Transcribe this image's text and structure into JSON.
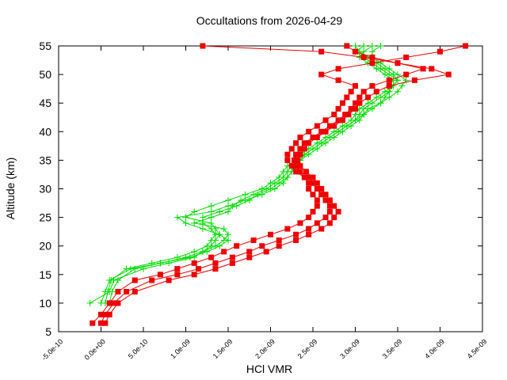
{
  "chart_data": {
    "type": "line",
    "title": "Occultations from 2026-04-29",
    "xlabel": "HCl VMR",
    "ylabel": "Altitude (km)",
    "xlim": [
      -5e-10,
      4.5e-09
    ],
    "ylim": [
      5,
      55
    ],
    "x_ticks": [
      "-5.0e-10",
      "0.0e+00",
      "5.0e-10",
      "1.0e-09",
      "1.5e-09",
      "2.0e-09",
      "2.5e-09",
      "3.0e-09",
      "3.5e-09",
      "4.0e-09",
      "4.5e-09"
    ],
    "x_tick_values": [
      -5e-10,
      0,
      5e-10,
      1e-09,
      1.5e-09,
      2e-09,
      2.5e-09,
      3e-09,
      3.5e-09,
      4e-09,
      4.5e-09
    ],
    "y_ticks": [
      "5",
      "10",
      "15",
      "20",
      "25",
      "30",
      "35",
      "40",
      "45",
      "50",
      "55"
    ],
    "y_tick_values": [
      5,
      10,
      15,
      20,
      25,
      30,
      35,
      40,
      45,
      50,
      55
    ],
    "grid": false,
    "legend": "none",
    "series": [
      {
        "color": "#00dd00",
        "marker": "plus",
        "profiles": [
          {
            "alt": [
              10,
              12,
              14,
              16,
              17,
              18,
              19,
              20,
              21,
              22,
              23,
              24,
              25,
              26,
              27,
              28,
              29,
              30,
              31,
              32,
              33,
              34,
              35,
              36,
              37,
              38,
              39,
              40,
              41,
              42,
              43,
              44,
              45,
              46,
              47,
              48,
              49,
              50,
              51,
              52,
              53,
              54,
              55
            ],
            "vmr": [
              -1.3e-10,
              1e-10,
              1.5e-10,
              5e-10,
              8e-10,
              1.1e-09,
              1.2e-09,
              1.3e-09,
              1.35e-09,
              1.4e-09,
              1.35e-09,
              1.3e-09,
              1e-09,
              1.1e-09,
              1.3e-09,
              1.5e-09,
              1.7e-09,
              1.9e-09,
              2e-09,
              2.1e-09,
              2.15e-09,
              2.2e-09,
              2.3e-09,
              2.4e-09,
              2.5e-09,
              2.6e-09,
              2.7e-09,
              2.8e-09,
              2.9e-09,
              3e-09,
              3.05e-09,
              3.1e-09,
              3.2e-09,
              3.3e-09,
              3.4e-09,
              3.45e-09,
              3.5e-09,
              3.4e-09,
              3.3e-09,
              3.2e-09,
              3.1e-09,
              3e-09,
              3.1e-09
            ]
          },
          {
            "alt": [
              10,
              12,
              14,
              16,
              17,
              18,
              19,
              20,
              21,
              22,
              23,
              24,
              25,
              26,
              27,
              28,
              29,
              30,
              31,
              32,
              33,
              34,
              35,
              36,
              37,
              38,
              39,
              40,
              41,
              42,
              43,
              44,
              45,
              46,
              47,
              48,
              49,
              50,
              51,
              52,
              53,
              54,
              55
            ],
            "vmr": [
              5e-11,
              8e-11,
              1.2e-10,
              3e-10,
              6e-10,
              9e-10,
              1.1e-09,
              1.25e-09,
              1.3e-09,
              1.35e-09,
              1.3e-09,
              1.2e-09,
              1.2e-09,
              1.4e-09,
              1.6e-09,
              1.75e-09,
              1.85e-09,
              2e-09,
              2.1e-09,
              2.2e-09,
              2.25e-09,
              2.3e-09,
              2.35e-09,
              2.45e-09,
              2.55e-09,
              2.65e-09,
              2.75e-09,
              2.85e-09,
              2.95e-09,
              3.05e-09,
              3.1e-09,
              3.15e-09,
              3.3e-09,
              3.4e-09,
              3.5e-09,
              3.55e-09,
              3.6e-09,
              3.5e-09,
              3.4e-09,
              3.3e-09,
              3.2e-09,
              3.2e-09,
              3.3e-09
            ]
          },
          {
            "alt": [
              10,
              12,
              14,
              16,
              17,
              18,
              19,
              20,
              21,
              22,
              23,
              24,
              25,
              26,
              27,
              28,
              29,
              30,
              31,
              32,
              33,
              34,
              35,
              36,
              37,
              38,
              39,
              40,
              41,
              42,
              43,
              44,
              45,
              46,
              47,
              48,
              49,
              50,
              51,
              52,
              53,
              54,
              55
            ],
            "vmr": [
              1e-10,
              1.3e-10,
              2e-10,
              4e-10,
              7e-10,
              1e-09,
              1.2e-09,
              1.35e-09,
              1.45e-09,
              1.5e-09,
              1.45e-09,
              1.1e-09,
              1.3e-09,
              1.5e-09,
              1.55e-09,
              1.65e-09,
              1.8e-09,
              1.95e-09,
              2.05e-09,
              2.15e-09,
              2.2e-09,
              2.25e-09,
              2.3e-09,
              2.35e-09,
              2.45e-09,
              2.55e-09,
              2.65e-09,
              2.75e-09,
              2.85e-09,
              2.95e-09,
              3e-09,
              3.05e-09,
              3.15e-09,
              3.25e-09,
              3.35e-09,
              3.45e-09,
              3.5e-09,
              3.45e-09,
              3.35e-09,
              3.25e-09,
              3.15e-09,
              3.05e-09,
              3e-09
            ]
          },
          {
            "alt": [
              10,
              12,
              14,
              16,
              17,
              18,
              19,
              20,
              21,
              22,
              23,
              24,
              25,
              26,
              27,
              28,
              29,
              30,
              31,
              32,
              33,
              34,
              35,
              36,
              37,
              38,
              39,
              40,
              41,
              42,
              43,
              44,
              45,
              46,
              47,
              48,
              49,
              50,
              51,
              52,
              53,
              54,
              55
            ],
            "vmr": [
              0.0,
              5e-11,
              1e-10,
              3.5e-10,
              7e-10,
              1.05e-09,
              1.25e-09,
              1.4e-09,
              1.5e-09,
              1.4e-09,
              1.2e-09,
              1e-09,
              9e-10,
              1.3e-09,
              1.5e-09,
              1.7e-09,
              1.9e-09,
              2.05e-09,
              2.15e-09,
              2.2e-09,
              2.25e-09,
              2.28e-09,
              2.35e-09,
              2.4e-09,
              2.5e-09,
              2.6e-09,
              2.7e-09,
              2.8e-09,
              2.9e-09,
              3e-09,
              3.1e-09,
              3.2e-09,
              3.3e-09,
              3.35e-09,
              3.4e-09,
              3.4e-09,
              3.45e-09,
              3.35e-09,
              3.25e-09,
              3.15e-09,
              3.05e-09,
              3.1e-09,
              3.2e-09
            ]
          }
        ]
      },
      {
        "color": "#ee0000",
        "marker": "square",
        "profiles": [
          {
            "alt": [
              6.5,
              8,
              10,
              12,
              14,
              15,
              16,
              17,
              18,
              19,
              20,
              21,
              22,
              23,
              24,
              25,
              26,
              27,
              28,
              29,
              30,
              31,
              32,
              33,
              34,
              35,
              36,
              37,
              38,
              39,
              40,
              41,
              42,
              43,
              44,
              45,
              46,
              47,
              48,
              49,
              50,
              51,
              52,
              53,
              54,
              55
            ],
            "vmr": [
              -1e-10,
              0.0,
              1e-10,
              2e-10,
              4e-10,
              7e-10,
              9e-10,
              1.1e-09,
              1.3e-09,
              1.45e-09,
              1.6e-09,
              1.8e-09,
              2e-09,
              2.2e-09,
              2.35e-09,
              2.45e-09,
              2.5e-09,
              2.55e-09,
              2.55e-09,
              2.5e-09,
              2.45e-09,
              2.45e-09,
              2.4e-09,
              2.3e-09,
              2.25e-09,
              2.2e-09,
              2.2e-09,
              2.25e-09,
              2.3e-09,
              2.35e-09,
              2.45e-09,
              2.55e-09,
              2.65e-09,
              2.75e-09,
              2.8e-09,
              2.85e-09,
              2.9e-09,
              2.95e-09,
              3e-09,
              2.8e-09,
              2.6e-09,
              2.8e-09,
              3.2e-09,
              3.6e-09,
              4e-09,
              4.3e-09
            ]
          },
          {
            "alt": [
              6.5,
              8,
              10,
              12,
              14,
              15,
              16,
              17,
              18,
              19,
              20,
              21,
              22,
              23,
              24,
              25,
              26,
              27,
              28,
              29,
              30,
              31,
              32,
              33,
              34,
              35,
              36,
              37,
              38,
              39,
              40,
              41,
              42,
              43,
              44,
              45,
              46,
              47,
              48,
              49,
              50,
              51,
              52,
              53,
              54,
              55
            ],
            "vmr": [
              0.0,
              5e-11,
              1.5e-10,
              3e-10,
              6e-10,
              9e-10,
              1.15e-09,
              1.35e-09,
              1.55e-09,
              1.75e-09,
              1.9e-09,
              2.1e-09,
              2.3e-09,
              2.45e-09,
              2.55e-09,
              2.65e-09,
              2.7e-09,
              2.7e-09,
              2.65e-09,
              2.6e-09,
              2.55e-09,
              2.5e-09,
              2.45e-09,
              2.35e-09,
              2.3e-09,
              2.28e-09,
              2.3e-09,
              2.35e-09,
              2.4e-09,
              2.5e-09,
              2.6e-09,
              2.7e-09,
              2.8e-09,
              2.88e-09,
              2.95e-09,
              3e-09,
              3.05e-09,
              3.1e-09,
              3.2e-09,
              3.4e-09,
              3.6e-09,
              3.8e-09,
              3.5e-09,
              3.2e-09,
              3e-09,
              2.9e-09
            ]
          },
          {
            "alt": [
              6.5,
              8,
              10,
              12,
              14,
              15,
              16,
              17,
              18,
              19,
              20,
              21,
              22,
              23,
              24,
              25,
              26,
              27,
              28,
              29,
              30,
              31,
              32,
              33,
              34,
              35,
              36,
              37,
              38,
              39,
              40,
              41,
              42,
              43,
              44,
              45,
              46,
              47,
              48,
              49,
              50,
              51,
              52,
              53,
              54,
              55
            ],
            "vmr": [
              5e-11,
              1e-10,
              2e-10,
              4e-10,
              8e-10,
              1.1e-09,
              1.35e-09,
              1.55e-09,
              1.75e-09,
              1.95e-09,
              2.1e-09,
              2.3e-09,
              2.45e-09,
              2.6e-09,
              2.7e-09,
              2.75e-09,
              2.8e-09,
              2.75e-09,
              2.7e-09,
              2.65e-09,
              2.6e-09,
              2.55e-09,
              2.5e-09,
              2.42e-09,
              2.35e-09,
              2.32e-09,
              2.35e-09,
              2.4e-09,
              2.45e-09,
              2.55e-09,
              2.65e-09,
              2.75e-09,
              2.85e-09,
              2.92e-09,
              3e-09,
              3.05e-09,
              3.15e-09,
              3.25e-09,
              3.4e-09,
              3.7e-09,
              4.1e-09,
              3.9e-09,
              3.5e-09,
              3.1e-09,
              2.6e-09,
              1.2e-09
            ]
          }
        ]
      }
    ]
  }
}
